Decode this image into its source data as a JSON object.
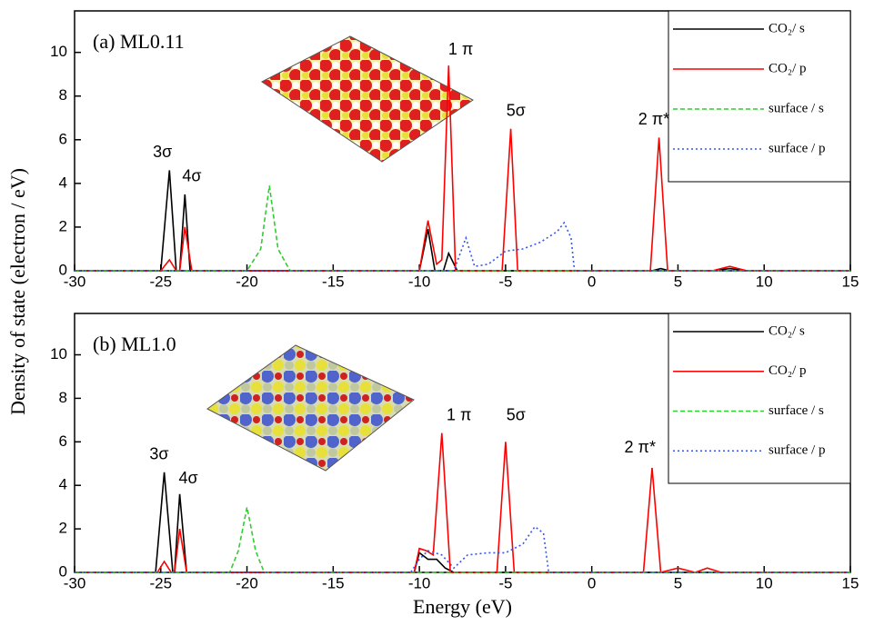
{
  "chart_data": [
    {
      "type": "line",
      "title": "(a)  ML0.11",
      "ylabel": "Density of state (electron / eV)",
      "xlim": [
        -30,
        15
      ],
      "xticks": [
        -30,
        -25,
        -20,
        -15,
        -10,
        -5,
        0,
        5,
        10,
        15
      ],
      "ylim": [
        0,
        11.9
      ],
      "yticks": [
        0,
        2,
        4,
        6,
        8,
        10
      ],
      "legend": "upper right",
      "series": [
        {
          "name": "CO₂/ s",
          "color": "#000000",
          "style": "solid",
          "x": [
            -30,
            -25.0,
            -24.5,
            -24.1,
            -23.9,
            -23.6,
            -23.3,
            -10.0,
            -9.5,
            -9.1,
            -8.6,
            -8.3,
            -7.8,
            -7,
            3.5,
            4,
            4.5,
            7,
            8,
            9,
            15
          ],
          "values": [
            0,
            0,
            4.6,
            0,
            0,
            3.5,
            0,
            0,
            1.9,
            0,
            0,
            0.8,
            0,
            0,
            0,
            0.1,
            0,
            0,
            0.1,
            0,
            0
          ]
        },
        {
          "name": "CO₂/ p",
          "color": "#ff0000",
          "style": "solid",
          "x": [
            -30,
            -25,
            -24.5,
            -24.1,
            -23.9,
            -23.6,
            -23.2,
            -10,
            -9.5,
            -9.0,
            -8.7,
            -8.3,
            -7.9,
            -5.2,
            -4.7,
            -4.3,
            3.4,
            3.9,
            4.4,
            7,
            8,
            9,
            15
          ],
          "values": [
            0,
            0,
            0.5,
            0,
            0,
            2.0,
            0,
            0,
            2.3,
            0.3,
            0.5,
            9.4,
            0,
            0,
            6.5,
            0,
            0,
            6.1,
            0,
            0,
            0.2,
            0,
            0
          ]
        },
        {
          "name": "surface / s",
          "color": "#33cc33",
          "style": "dashed",
          "x": [
            -30,
            -20,
            -19.2,
            -18.7,
            -18.2,
            -17.5,
            15
          ],
          "values": [
            0,
            0,
            1.0,
            3.9,
            1.0,
            0,
            0
          ]
        },
        {
          "name": "surface / p",
          "color": "#3355ee",
          "style": "dotted",
          "x": [
            -30,
            -8,
            -7.3,
            -6.8,
            -6,
            -5,
            -4,
            -3,
            -2,
            -1.6,
            -1.2,
            -1,
            15
          ],
          "values": [
            0,
            0,
            1.5,
            0.2,
            0.3,
            0.9,
            1.0,
            1.3,
            1.8,
            2.2,
            1.5,
            0,
            0
          ]
        }
      ],
      "annotations": [
        {
          "text": "3σ",
          "x": -24.9,
          "y": 5.4
        },
        {
          "text": "4σ",
          "x": -23.2,
          "y": 4.3
        },
        {
          "text": "1 π",
          "x": -7.6,
          "y": 10.1
        },
        {
          "text": "5σ",
          "x": -4.4,
          "y": 7.3
        },
        {
          "text": "2 π*",
          "x": 3.6,
          "y": 6.9
        }
      ]
    },
    {
      "type": "line",
      "title": "(b)  ML1.0",
      "xlabel": "Energy (eV)",
      "xlim": [
        -30,
        15
      ],
      "xticks": [
        -30,
        -25,
        -20,
        -15,
        -10,
        -5,
        0,
        5,
        10,
        15
      ],
      "ylim": [
        0,
        11.9
      ],
      "yticks": [
        0,
        2,
        4,
        6,
        8,
        10
      ],
      "legend": "upper right",
      "series": [
        {
          "name": "CO₂/ s",
          "color": "#000000",
          "style": "solid",
          "x": [
            -30,
            -25.3,
            -24.8,
            -24.3,
            -24.2,
            -23.9,
            -23.5,
            -10.3,
            -10,
            -9.5,
            -9,
            -8.5,
            -8,
            15
          ],
          "values": [
            0,
            0,
            4.6,
            0,
            0,
            3.6,
            0,
            0,
            0.9,
            0.6,
            0.6,
            0.2,
            0,
            0
          ]
        },
        {
          "name": "CO₂/ p",
          "color": "#ff0000",
          "style": "solid",
          "x": [
            -30,
            -25.2,
            -24.8,
            -24.4,
            -24.2,
            -23.9,
            -23.5,
            -10.3,
            -10,
            -9.6,
            -9.2,
            -8.7,
            -8.2,
            -5.5,
            -5,
            -4.5,
            3,
            3.5,
            4,
            5,
            6,
            6.7,
            7.5,
            15
          ],
          "values": [
            0,
            0,
            0.5,
            0,
            0,
            2.0,
            0,
            0,
            1.1,
            1.0,
            0.8,
            6.4,
            0,
            0,
            6.0,
            0,
            0,
            4.8,
            0,
            0.2,
            0,
            0.2,
            0,
            0
          ]
        },
        {
          "name": "surface / s",
          "color": "#33cc33",
          "style": "dashed",
          "x": [
            -30,
            -21,
            -20.5,
            -20,
            -19.5,
            -19,
            15
          ],
          "values": [
            0,
            0,
            1,
            3.0,
            1,
            0,
            0
          ]
        },
        {
          "name": "surface / p",
          "color": "#3355ee",
          "style": "dotted",
          "x": [
            -30,
            -10.5,
            -10,
            -9.5,
            -8.7,
            -8,
            -7.2,
            -6,
            -5,
            -4,
            -3.3,
            -2.8,
            -2.5,
            15
          ],
          "values": [
            0,
            0,
            0.6,
            1.0,
            0.8,
            0.2,
            0.8,
            0.9,
            0.9,
            1.3,
            2.1,
            1.8,
            0,
            0
          ]
        }
      ],
      "annotations": [
        {
          "text": "3σ",
          "x": -25.1,
          "y": 5.4
        },
        {
          "text": "4σ",
          "x": -23.4,
          "y": 4.3
        },
        {
          "text": "1 π",
          "x": -7.7,
          "y": 7.2
        },
        {
          "text": "5σ",
          "x": -4.4,
          "y": 7.2
        },
        {
          "text": "2 π*",
          "x": 2.8,
          "y": 5.7
        }
      ]
    }
  ]
}
